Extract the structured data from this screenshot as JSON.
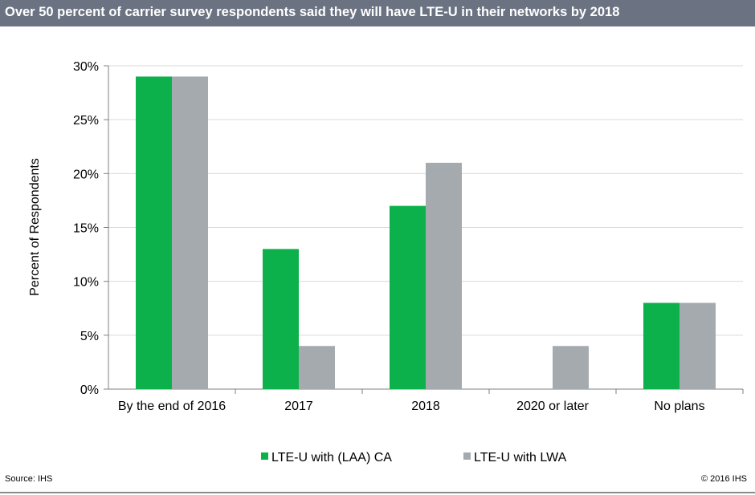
{
  "header": {
    "title": "Over 50 percent of carrier survey respondents said they will have LTE-U in their networks by 2018"
  },
  "footer": {
    "source": "Source: IHS",
    "copyright": "© 2016 IHS"
  },
  "chart_data": {
    "type": "bar",
    "title": "Over 50 percent of carrier survey respondents said they will have LTE-U in their networks by 2018",
    "xlabel": "",
    "ylabel": "Percent of Respondents",
    "ylim": [
      0,
      30
    ],
    "yticks": [
      "0%",
      "5%",
      "10%",
      "15%",
      "20%",
      "25%",
      "30%"
    ],
    "grid": true,
    "legend": "bottom",
    "categories": [
      "By the end of 2016",
      "2017",
      "2018",
      "2020 or later",
      "No plans"
    ],
    "series": [
      {
        "name": "LTE-U with (LAA) CA",
        "color": "#0db14b",
        "values": [
          29,
          13,
          17,
          0,
          8
        ]
      },
      {
        "name": "LTE-U with LWA",
        "color": "#a5aaaf",
        "values": [
          29,
          4,
          21,
          4,
          8
        ]
      }
    ]
  }
}
